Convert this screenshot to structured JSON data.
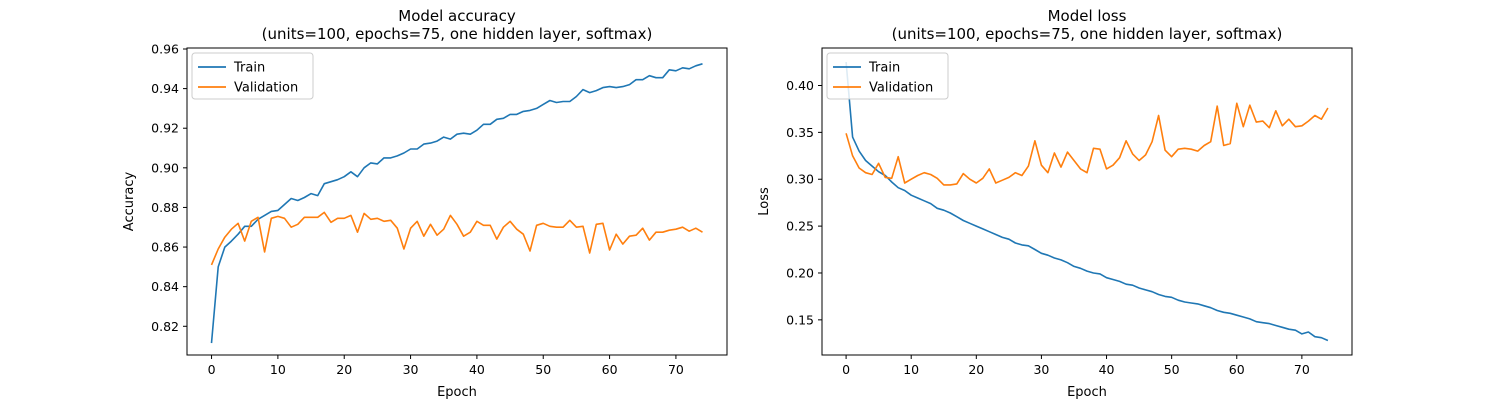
{
  "chart_data": [
    {
      "type": "line",
      "title": "Model accuracy",
      "subtitle": "(units=100, epochs=75, one hidden layer, softmax)",
      "xlabel": "Epoch",
      "ylabel": "Accuracy",
      "xlim": [
        -3.7,
        77.7
      ],
      "ylim": [
        0.8055,
        0.9605
      ],
      "xticks": [
        0,
        10,
        20,
        30,
        40,
        50,
        60,
        70
      ],
      "yticks": [
        0.82,
        0.84,
        0.86,
        0.88,
        0.9,
        0.92,
        0.94,
        0.96
      ],
      "ytick_labels": [
        "0.82",
        "0.84",
        "0.86",
        "0.88",
        "0.90",
        "0.92",
        "0.94",
        "0.96"
      ],
      "legend": "top-left",
      "grid": false,
      "series": [
        {
          "name": "Train",
          "color": "#1f77b4",
          "values": [
            0.8115,
            0.85,
            0.86,
            0.863,
            0.8665,
            0.8705,
            0.8705,
            0.874,
            0.876,
            0.878,
            0.8785,
            0.8815,
            0.8845,
            0.8835,
            0.885,
            0.887,
            0.886,
            0.892,
            0.893,
            0.894,
            0.8955,
            0.898,
            0.8955,
            0.9,
            0.9025,
            0.902,
            0.905,
            0.905,
            0.906,
            0.9075,
            0.9095,
            0.9095,
            0.912,
            0.9125,
            0.9135,
            0.9155,
            0.9145,
            0.917,
            0.9175,
            0.917,
            0.919,
            0.922,
            0.922,
            0.9245,
            0.925,
            0.927,
            0.927,
            0.9285,
            0.929,
            0.93,
            0.932,
            0.934,
            0.933,
            0.9335,
            0.9335,
            0.936,
            0.9395,
            0.938,
            0.939,
            0.9405,
            0.941,
            0.9405,
            0.941,
            0.942,
            0.9445,
            0.9445,
            0.9465,
            0.9455,
            0.9455,
            0.9495,
            0.949,
            0.9505,
            0.95,
            0.9515,
            0.9525
          ]
        },
        {
          "name": "Validation",
          "color": "#ff7f0e",
          "values": [
            0.851,
            0.859,
            0.865,
            0.869,
            0.872,
            0.863,
            0.873,
            0.875,
            0.8575,
            0.8745,
            0.8755,
            0.8745,
            0.87,
            0.8715,
            0.875,
            0.875,
            0.875,
            0.8775,
            0.8725,
            0.8745,
            0.8745,
            0.876,
            0.8675,
            0.877,
            0.874,
            0.8745,
            0.873,
            0.8735,
            0.8695,
            0.859,
            0.8695,
            0.873,
            0.8655,
            0.8715,
            0.866,
            0.869,
            0.876,
            0.8715,
            0.8655,
            0.8675,
            0.873,
            0.871,
            0.871,
            0.864,
            0.87,
            0.873,
            0.869,
            0.8665,
            0.858,
            0.871,
            0.872,
            0.8705,
            0.87,
            0.87,
            0.8735,
            0.87,
            0.8705,
            0.857,
            0.8715,
            0.872,
            0.8585,
            0.8665,
            0.8615,
            0.8655,
            0.866,
            0.8695,
            0.8635,
            0.8675,
            0.8675,
            0.8685,
            0.869,
            0.87,
            0.868,
            0.8695,
            0.8675
          ]
        }
      ]
    },
    {
      "type": "line",
      "title": "Model loss",
      "subtitle": "(units=100, epochs=75, one hidden layer, softmax)",
      "xlabel": "Epoch",
      "ylabel": "Loss",
      "xlim": [
        -3.7,
        77.7
      ],
      "ylim": [
        0.1125,
        0.44
      ],
      "xticks": [
        0,
        10,
        20,
        30,
        40,
        50,
        60,
        70
      ],
      "yticks": [
        0.15,
        0.2,
        0.25,
        0.3,
        0.35,
        0.4
      ],
      "ytick_labels": [
        "0.15",
        "0.20",
        "0.25",
        "0.30",
        "0.35",
        "0.40"
      ],
      "legend": "top-left",
      "grid": false,
      "series": [
        {
          "name": "Train",
          "color": "#1f77b4",
          "values": [
            0.425,
            0.345,
            0.33,
            0.32,
            0.314,
            0.308,
            0.304,
            0.297,
            0.291,
            0.288,
            0.283,
            0.28,
            0.277,
            0.274,
            0.269,
            0.267,
            0.264,
            0.26,
            0.256,
            0.253,
            0.25,
            0.247,
            0.244,
            0.241,
            0.238,
            0.236,
            0.232,
            0.23,
            0.229,
            0.225,
            0.221,
            0.219,
            0.216,
            0.214,
            0.211,
            0.207,
            0.205,
            0.202,
            0.2,
            0.199,
            0.195,
            0.193,
            0.191,
            0.188,
            0.187,
            0.184,
            0.182,
            0.18,
            0.177,
            0.175,
            0.174,
            0.171,
            0.169,
            0.168,
            0.167,
            0.165,
            0.163,
            0.16,
            0.158,
            0.157,
            0.155,
            0.153,
            0.151,
            0.148,
            0.147,
            0.146,
            0.144,
            0.142,
            0.14,
            0.139,
            0.135,
            0.137,
            0.132,
            0.131,
            0.128
          ]
        },
        {
          "name": "Validation",
          "color": "#ff7f0e",
          "values": [
            0.349,
            0.325,
            0.312,
            0.307,
            0.305,
            0.317,
            0.302,
            0.301,
            0.324,
            0.296,
            0.3,
            0.304,
            0.307,
            0.305,
            0.301,
            0.294,
            0.294,
            0.295,
            0.306,
            0.3,
            0.296,
            0.301,
            0.311,
            0.296,
            0.299,
            0.302,
            0.307,
            0.304,
            0.314,
            0.341,
            0.315,
            0.307,
            0.328,
            0.313,
            0.329,
            0.32,
            0.311,
            0.307,
            0.333,
            0.332,
            0.311,
            0.315,
            0.323,
            0.341,
            0.327,
            0.32,
            0.326,
            0.34,
            0.368,
            0.331,
            0.324,
            0.332,
            0.333,
            0.332,
            0.33,
            0.336,
            0.34,
            0.378,
            0.336,
            0.338,
            0.381,
            0.356,
            0.379,
            0.361,
            0.362,
            0.355,
            0.373,
            0.357,
            0.364,
            0.356,
            0.357,
            0.362,
            0.368,
            0.364,
            0.376
          ]
        }
      ]
    }
  ]
}
